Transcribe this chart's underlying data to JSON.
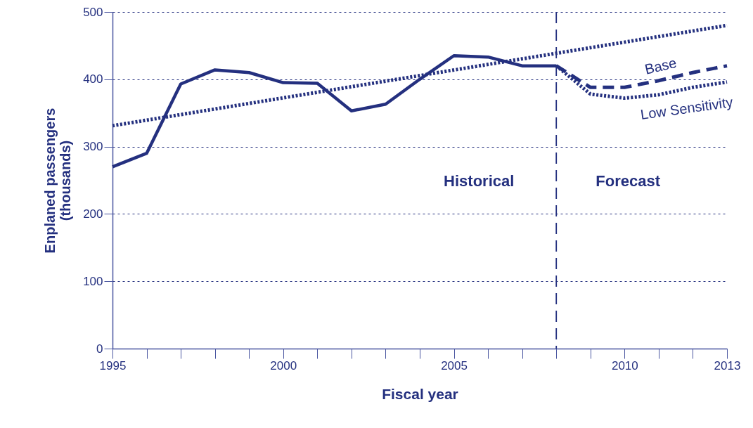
{
  "chart_data": {
    "type": "line",
    "xlabel": "Fiscal year",
    "ylabel": "Enplaned passengers\n(thousands)",
    "xlim": [
      1995,
      2013
    ],
    "ylim": [
      0,
      500
    ],
    "xticks": [
      1995,
      {
        "value": 1996,
        "label": null
      },
      {
        "value": 1997,
        "label": null
      },
      {
        "value": 1998,
        "label": null
      },
      {
        "value": 1999,
        "label": null
      },
      2000,
      {
        "value": 2001,
        "label": null
      },
      {
        "value": 2002,
        "label": null
      },
      {
        "value": 2003,
        "label": null
      },
      {
        "value": 2004,
        "label": null
      },
      2005,
      {
        "value": 2006,
        "label": null
      },
      {
        "value": 2007,
        "label": null
      },
      {
        "value": 2008,
        "label": null
      },
      {
        "value": 2009,
        "label": null
      },
      2010,
      {
        "value": 2011,
        "label": null
      },
      {
        "value": 2012,
        "label": null
      },
      2013
    ],
    "yticks": [
      0,
      100,
      200,
      300,
      400,
      500
    ],
    "grid": "y",
    "marker": "none",
    "series": [
      {
        "color": "#24307f",
        "line_style": "solid",
        "x": [
          1995,
          1996,
          1997,
          1998,
          1999,
          2000,
          2001,
          2002,
          2003,
          2004,
          2005,
          2006,
          2007,
          2008
        ],
        "values": [
          270,
          290,
          393,
          414,
          410,
          395,
          394,
          353,
          363,
          400,
          435,
          433,
          420,
          420
        ]
      },
      {
        "type": "line",
        "color": "#24307f",
        "line_style": "dotted",
        "x": [
          1995,
          2013
        ],
        "values": [
          331,
          480
        ]
      },
      {
        "name": "Base",
        "color": "#24307f",
        "line_style": "dashed",
        "x": [
          2008,
          2009,
          2010,
          2011,
          2012,
          2013
        ],
        "values": [
          420,
          388,
          388,
          398,
          410,
          420
        ]
      },
      {
        "name": "Low Sensitivity",
        "color": "#24307f",
        "line_style": "dotted",
        "x": [
          2008,
          2009,
          2010,
          2011,
          2012,
          2013
        ],
        "values": [
          420,
          378,
          372,
          377,
          388,
          396
        ]
      }
    ],
    "ref_lines": [
      {
        "axis": "x",
        "value": 2008,
        "line_style": "dashed",
        "color": "#24307f"
      }
    ],
    "annotations": [
      "Historical",
      "Forecast"
    ]
  }
}
